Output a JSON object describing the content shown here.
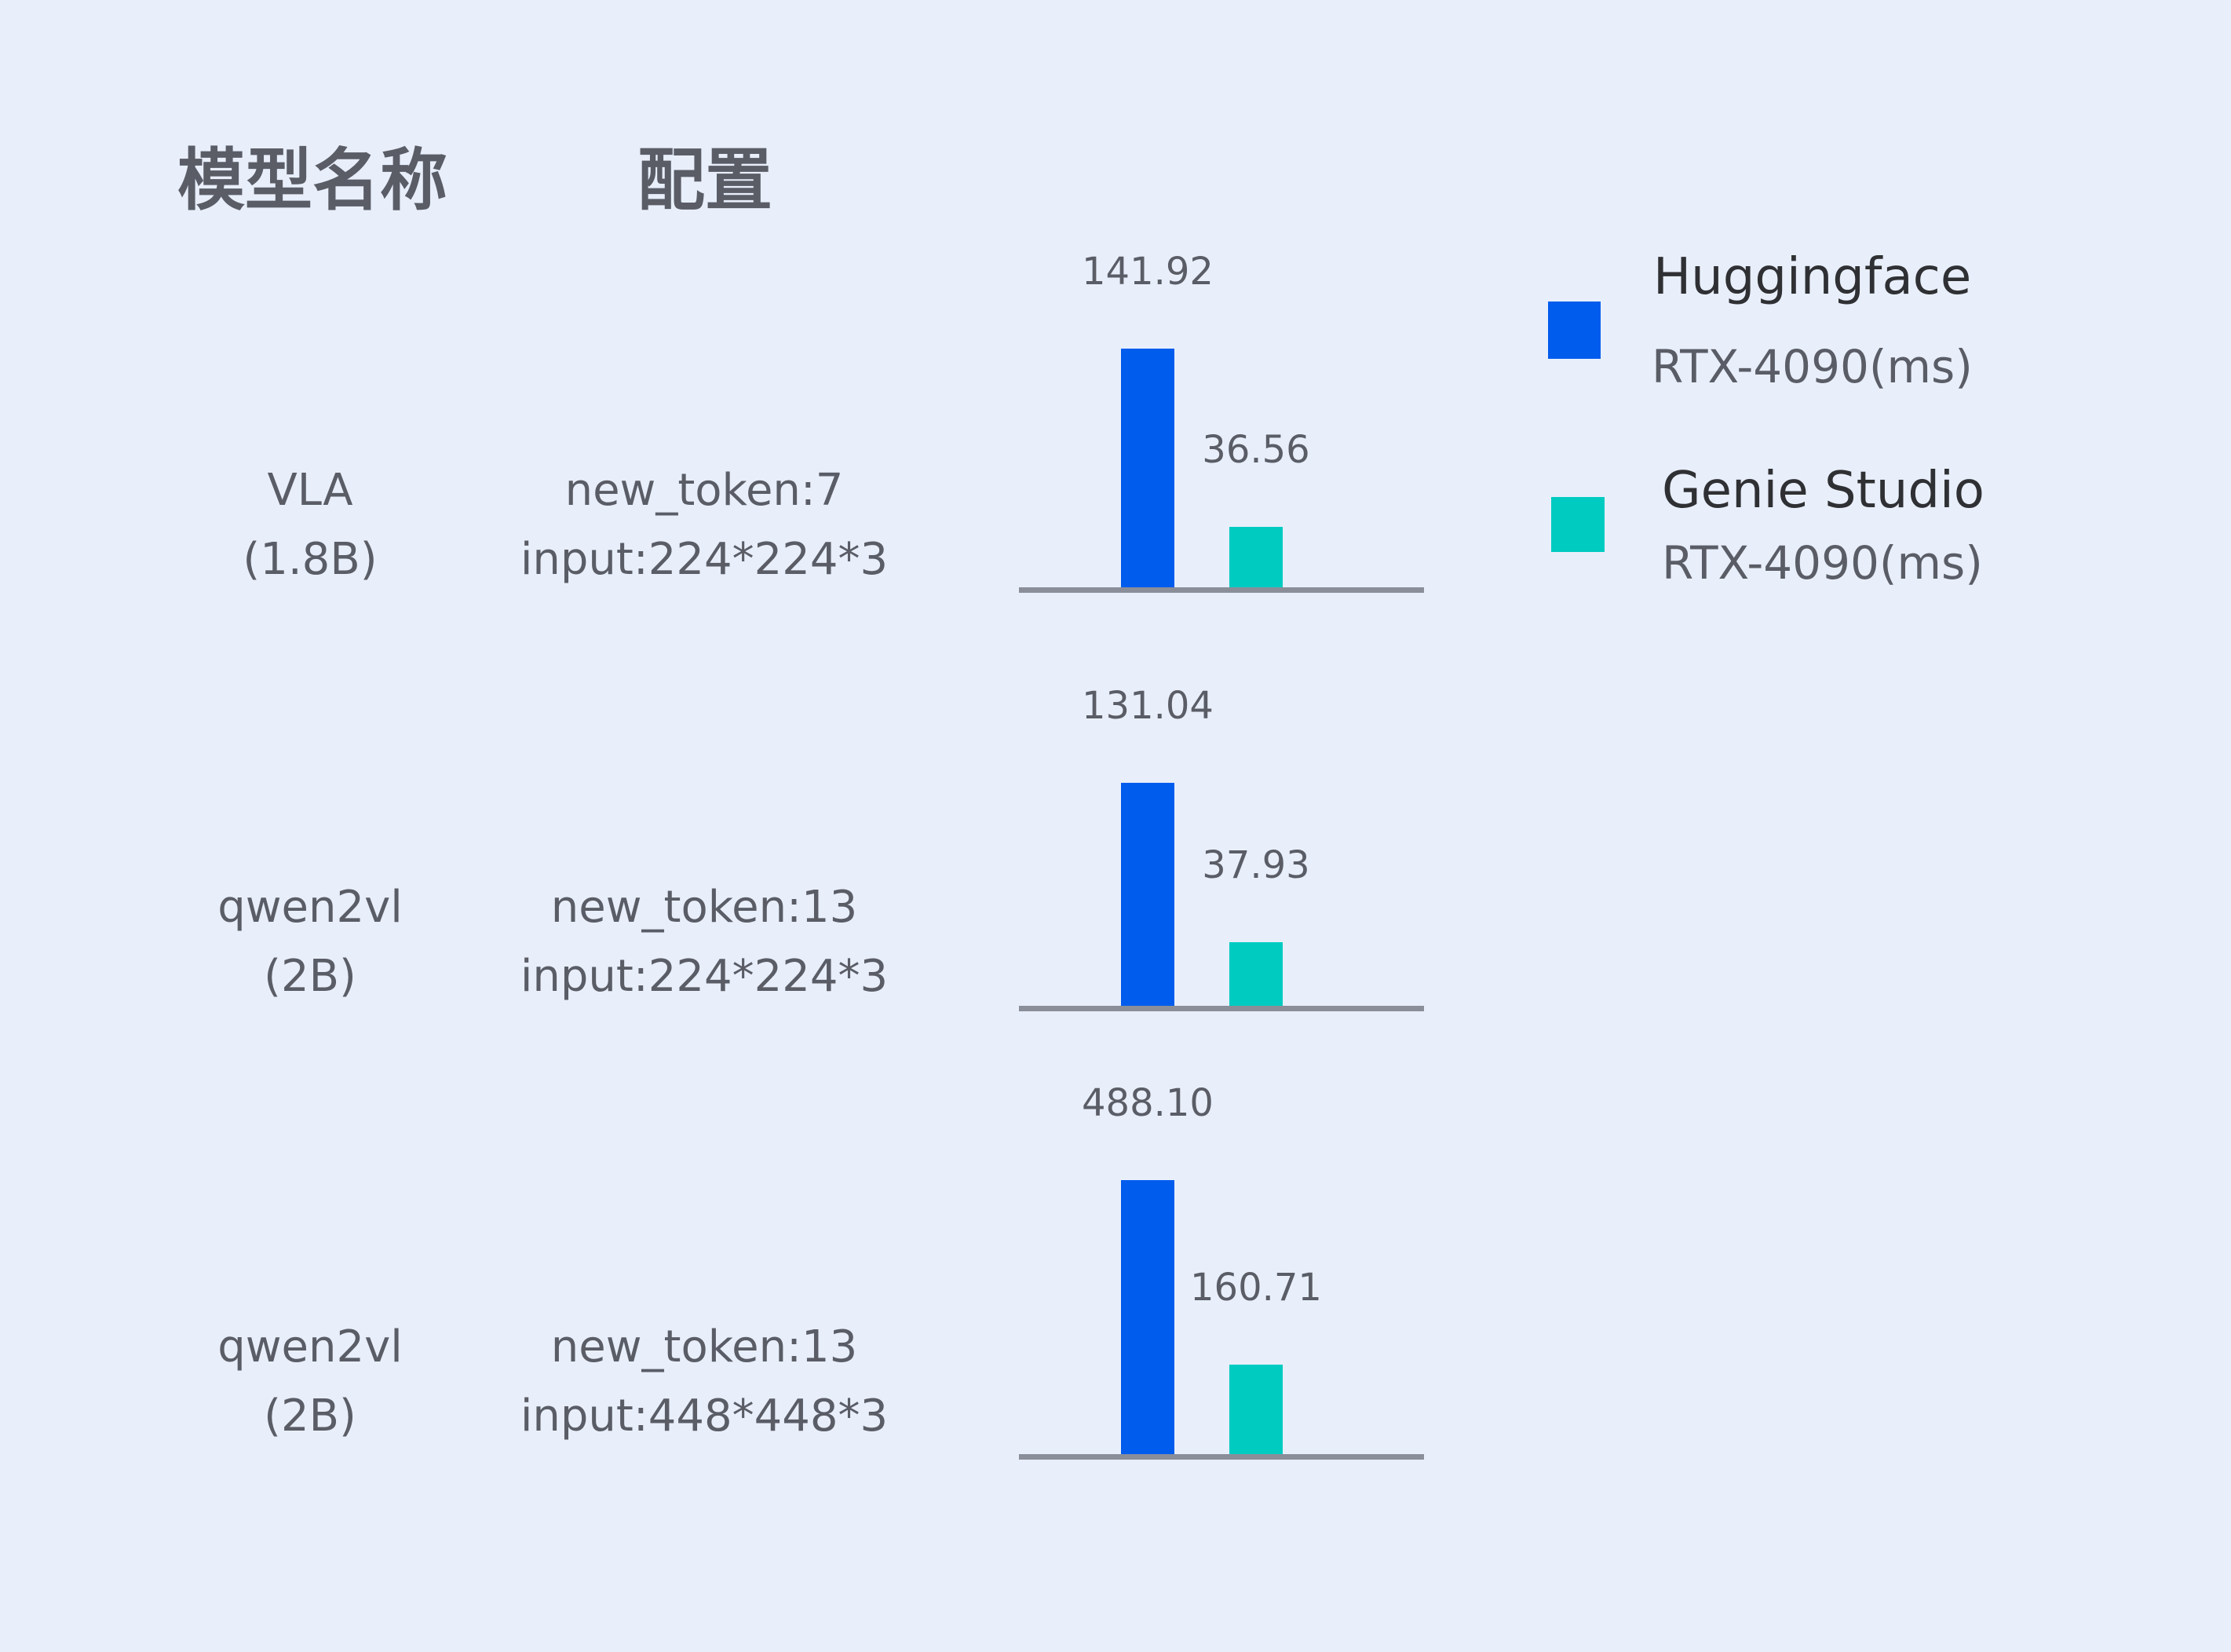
{
  "headers": {
    "model": "模型名称",
    "config": "配置"
  },
  "colors": {
    "background": "#e8effb",
    "huggingface": "#005ced",
    "genie_studio": "#00cbc1",
    "axis": "#8a8e99"
  },
  "chart_data": {
    "type": "bar",
    "layout": "grouped bars per row, each row scaled independently",
    "legend_position": "top-right",
    "grid": false,
    "categories": [
      {
        "model": "VLA",
        "size": "(1.8B)",
        "config_line1": "new_token:7",
        "config_line2": "input:224*224*3"
      },
      {
        "model": "qwen2vl",
        "size": "(2B)",
        "config_line1": "new_token:13",
        "config_line2": "input:224*224*3"
      },
      {
        "model": "qwen2vl",
        "size": "(2B)",
        "config_line1": "new_token:13",
        "config_line2": "input:448*448*3"
      }
    ],
    "series": [
      {
        "name": "Huggingface",
        "subtitle": "RTX-4090(ms)",
        "color": "#005ced",
        "values": [
          141.92,
          131.04,
          488.1
        ],
        "labels": [
          "141.92",
          "131.04",
          "488.10"
        ]
      },
      {
        "name": "Genie Studio",
        "subtitle": "RTX-4090(ms)",
        "color": "#00cbc1",
        "values": [
          36.56,
          37.93,
          160.71
        ],
        "labels": [
          "36.56",
          "37.93",
          "160.71"
        ]
      }
    ]
  }
}
